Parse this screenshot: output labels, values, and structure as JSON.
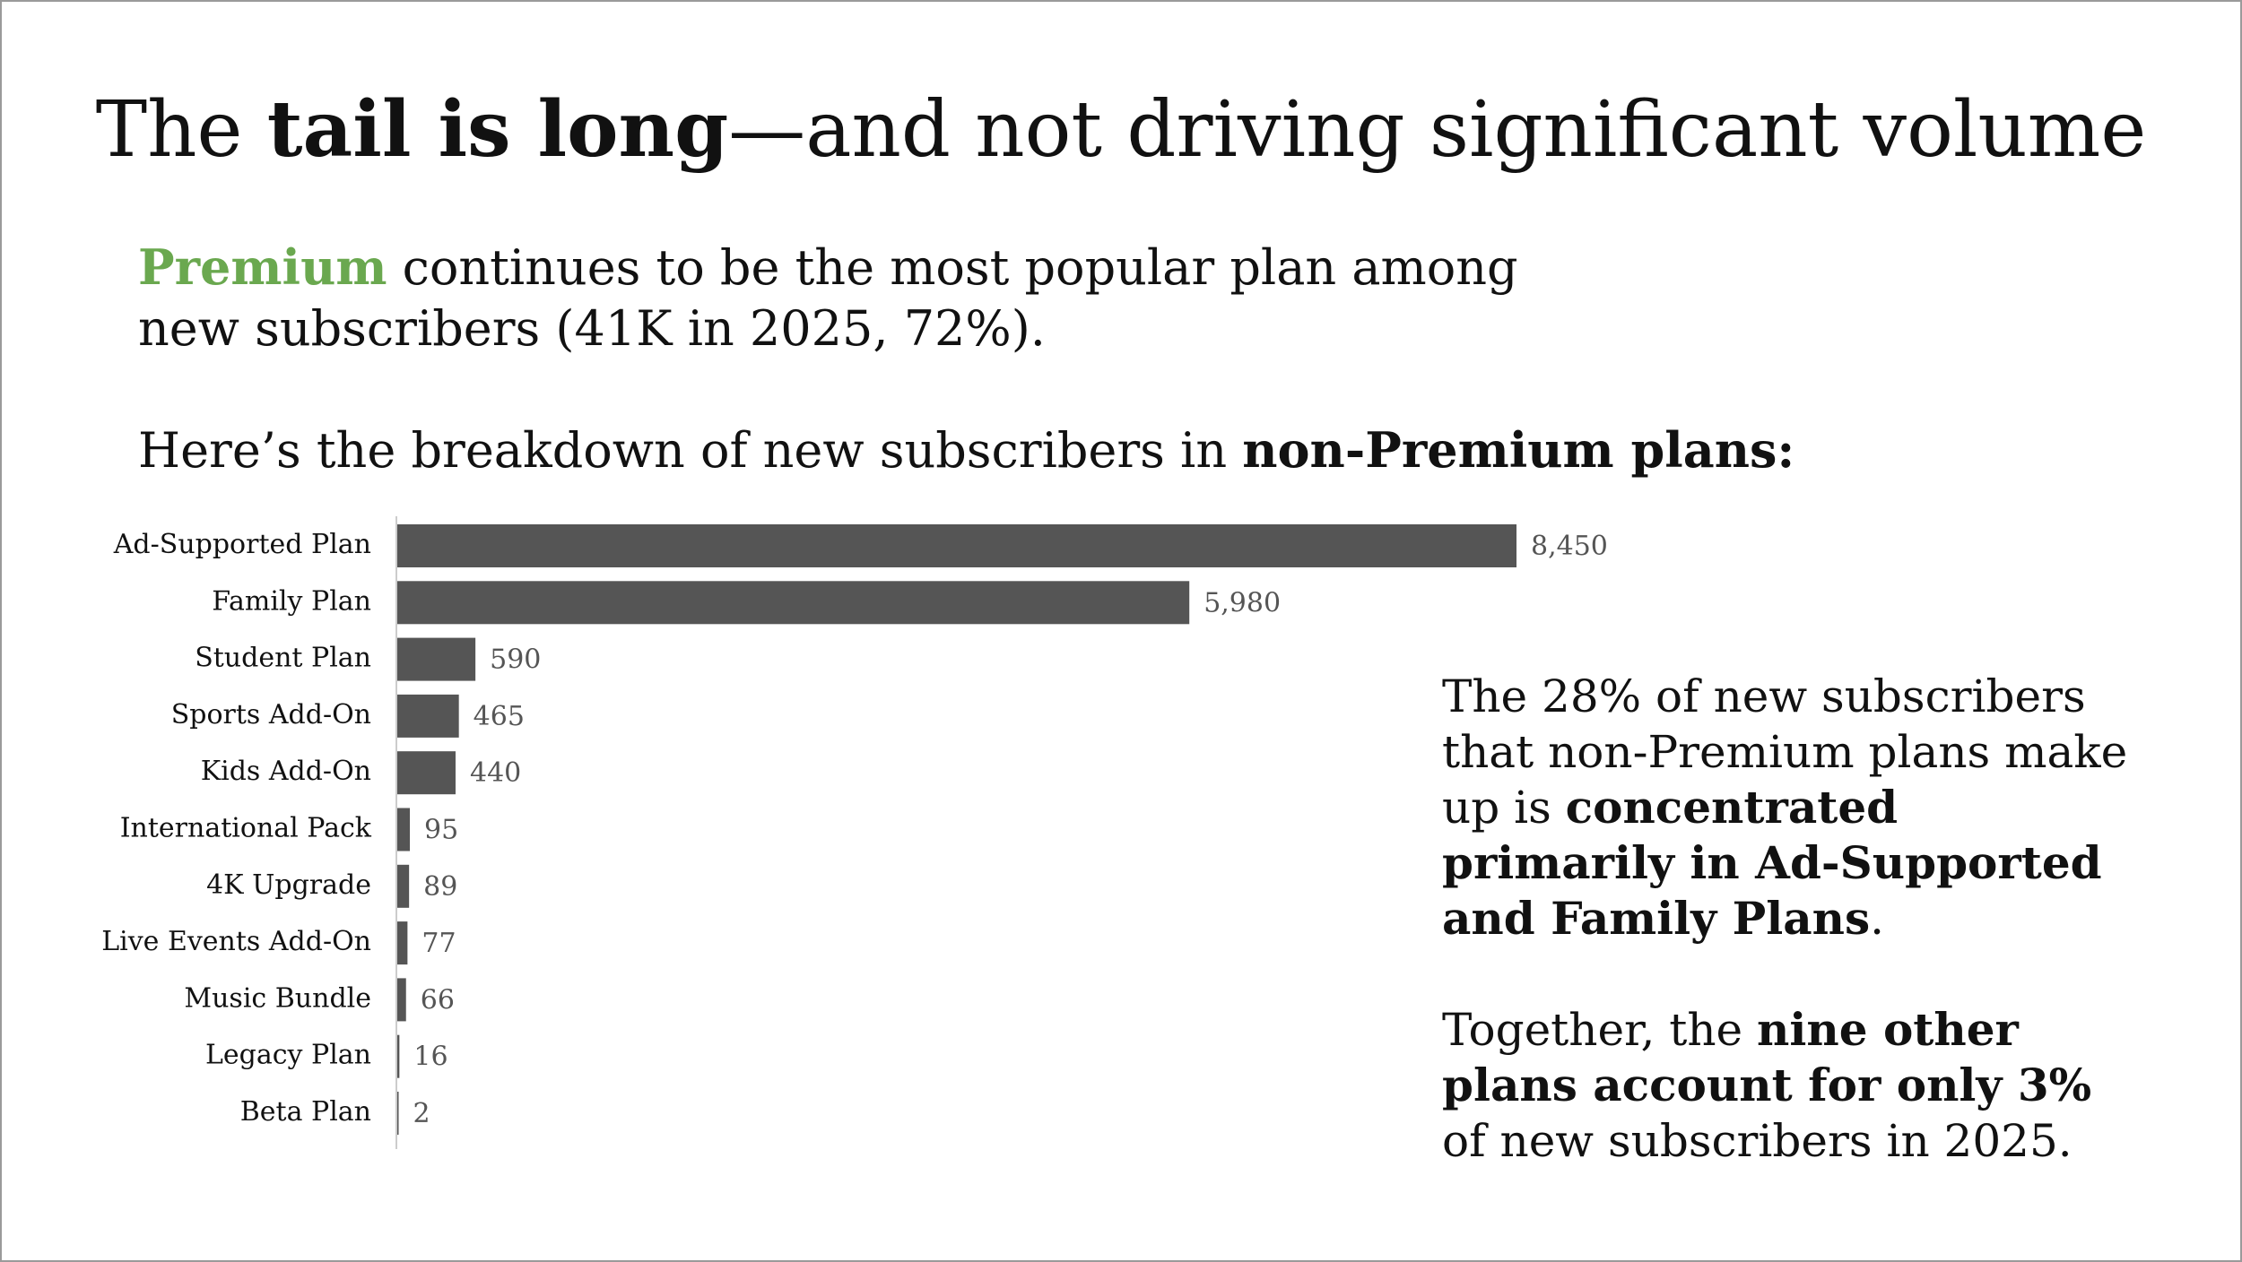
{
  "title": {
    "part1": "The ",
    "bold": "tail is long",
    "part2": "—and not driving significant volume"
  },
  "intro": {
    "highlight": "Premium",
    "rest": " continues to be the most popular plan among new subscribers (41K in 2025, 72%)."
  },
  "breakdown": {
    "text": "Here’s the breakdown of new subscribers in ",
    "bold": "non-Premium plans:"
  },
  "note": {
    "p1_text": "The 28% of new subscribers that non-Premium plans make up is ",
    "p1_bold": "concentrated primarily in Ad-Supported and Family Plans",
    "p1_end": ".",
    "p2_text": "Together, the ",
    "p2_bold": "nine other plans account for only 3%",
    "p2_end": " of new subscribers in 2025."
  },
  "colors": {
    "accent": "#6aa84f",
    "bar": "#555555",
    "value_label": "#555555",
    "axis": "#cccccc"
  },
  "chart_data": {
    "type": "bar",
    "orientation": "horizontal",
    "title": "",
    "xlabel": "",
    "ylabel": "",
    "grid": false,
    "categories": [
      "Ad-Supported Plan",
      "Family Plan",
      "Student Plan",
      "Sports Add-On",
      "Kids Add-On",
      "International Pack",
      "4K Upgrade",
      "Live Events Add-On",
      "Music Bundle",
      "Legacy Plan",
      "Beta Plan"
    ],
    "values": [
      8450,
      5980,
      590,
      465,
      440,
      95,
      89,
      77,
      66,
      16,
      2
    ],
    "value_labels": [
      "8,450",
      "5,980",
      "590",
      "465",
      "440",
      "95",
      "89",
      "77",
      "66",
      "16",
      "2"
    ],
    "xlim": [
      0,
      8450
    ]
  }
}
